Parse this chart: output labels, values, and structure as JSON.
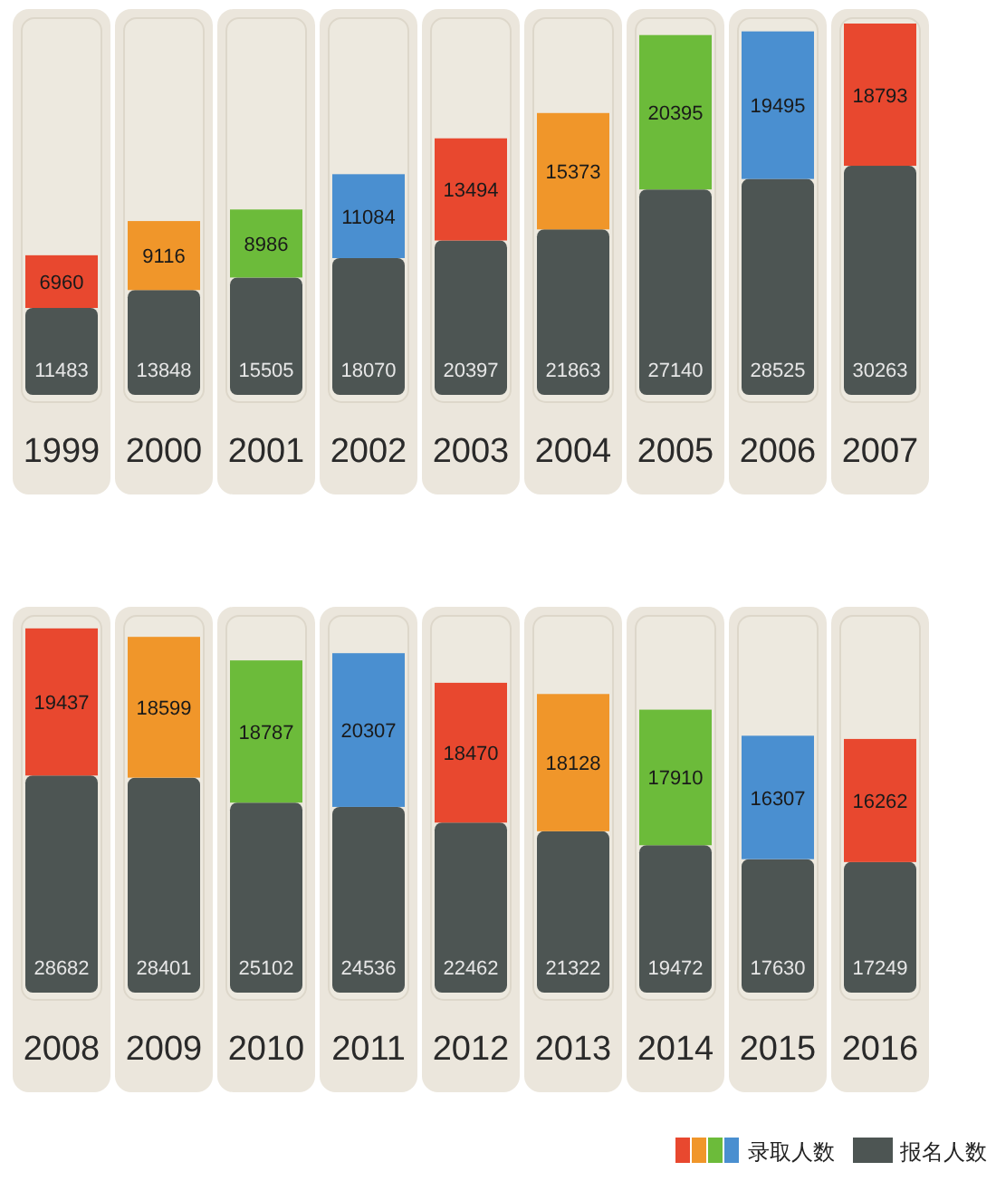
{
  "chart_data": [
    {
      "type": "bar",
      "stacked": true,
      "data_labels": true,
      "legend": false,
      "categories": [
        "1999",
        "2000",
        "2001",
        "2002",
        "2003",
        "2004",
        "2005",
        "2006",
        "2007"
      ],
      "series": [
        {
          "color": "#4d5553",
          "values": [
            11483,
            13848,
            15505,
            18070,
            20397,
            21863,
            27140,
            28525,
            30263
          ]
        },
        {
          "colors": [
            "#e8482f",
            "#f0962a",
            "#6cbb3a",
            "#4a8fd0",
            "#e8482f",
            "#f0962a",
            "#6cbb3a",
            "#4a8fd0",
            "#e8482f"
          ],
          "values": [
            6960,
            9116,
            8986,
            11084,
            13494,
            15373,
            20395,
            19495,
            18793
          ]
        }
      ]
    },
    {
      "type": "bar",
      "stacked": true,
      "data_labels": true,
      "legend": "bottom right",
      "categories": [
        "2008",
        "2009",
        "2010",
        "2011",
        "2012",
        "2013",
        "2014",
        "2015",
        "2016"
      ],
      "series": [
        {
          "name": "报名人数",
          "color": "#4d5553",
          "values": [
            28682,
            28401,
            25102,
            24536,
            22462,
            21322,
            19472,
            17630,
            17249
          ]
        },
        {
          "name": "录取人数",
          "colors": [
            "#e8482f",
            "#f0962a",
            "#6cbb3a",
            "#4a8fd0",
            "#e8482f",
            "#f0962a",
            "#6cbb3a",
            "#4a8fd0",
            "#e8482f"
          ],
          "values": [
            19437,
            18599,
            18787,
            20307,
            18470,
            18128,
            17910,
            16307,
            16262
          ]
        }
      ]
    }
  ]
}
